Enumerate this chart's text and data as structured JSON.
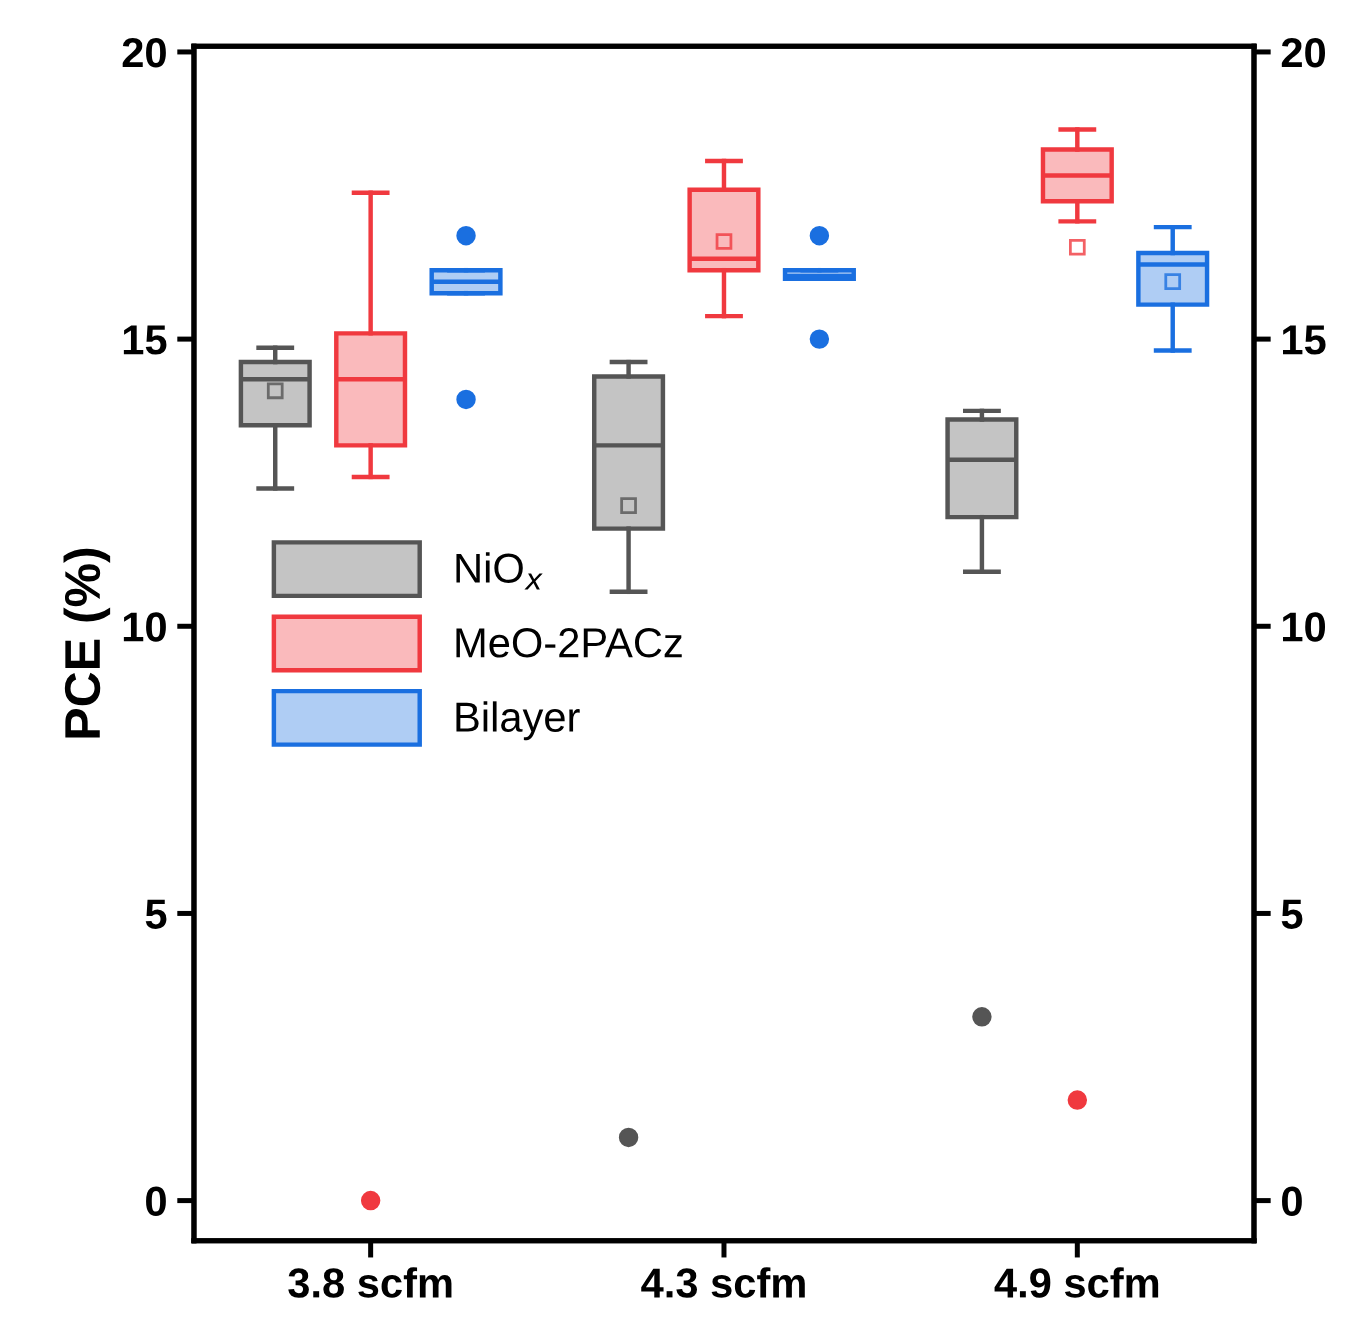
{
  "chart_data": {
    "type": "box",
    "ylabel": "PCE (%)",
    "categories": [
      "3.8 scfm",
      "4.3 scfm",
      "4.9 scfm"
    ],
    "ylim": [
      -0.7,
      20.1
    ],
    "yticks": [
      0,
      5,
      10,
      15,
      20
    ],
    "y2lim": [
      -0.7,
      20.1
    ],
    "y2ticks": [
      0,
      5,
      10,
      15,
      20
    ],
    "legend": "left",
    "grid": false,
    "series": [
      {
        "name": "NiO$_{x}$",
        "color": "#555555",
        "boxes": [
          {
            "low": 12.4,
            "q1": 13.5,
            "median": 14.3,
            "q3": 14.6,
            "high": 14.85,
            "mean": 14.1
          },
          {
            "low": 10.6,
            "q1": 11.7,
            "median": 13.15,
            "q3": 14.35,
            "high": 14.6,
            "mean": 12.1,
            "outliers": [
              1.1
            ]
          },
          {
            "low": 10.95,
            "q1": 11.9,
            "median": 12.9,
            "q3": 13.6,
            "high": 13.75,
            "outliers": [
              3.2
            ]
          }
        ]
      },
      {
        "name": "MeO-2PACz",
        "color": "#f0393f",
        "boxes": [
          {
            "low": 12.6,
            "q1": 13.15,
            "median": 14.3,
            "q3": 15.1,
            "high": 17.55,
            "outliers": [
              0.0
            ]
          },
          {
            "low": 15.4,
            "q1": 16.2,
            "median": 16.4,
            "q3": 17.6,
            "high": 18.1,
            "mean": 16.7
          },
          {
            "low": 17.05,
            "q1": 17.4,
            "median": 17.85,
            "q3": 18.3,
            "high": 18.65,
            "mean": 16.6,
            "outliers": [
              1.75
            ]
          }
        ]
      },
      {
        "name": "Bilayer",
        "color": "#1a6fe0",
        "boxes": [
          {
            "low": 15.8,
            "q1": 15.8,
            "median": 16.0,
            "q3": 16.2,
            "high": 16.2,
            "outliers": [
              16.8,
              13.95
            ]
          },
          {
            "low": 16.05,
            "q1": 16.05,
            "median": 16.1,
            "q3": 16.2,
            "high": 16.2,
            "outliers": [
              16.8,
              15.0
            ]
          },
          {
            "low": 14.8,
            "q1": 15.6,
            "median": 16.3,
            "q3": 16.5,
            "high": 16.95,
            "mean": 16.0
          }
        ]
      }
    ]
  }
}
